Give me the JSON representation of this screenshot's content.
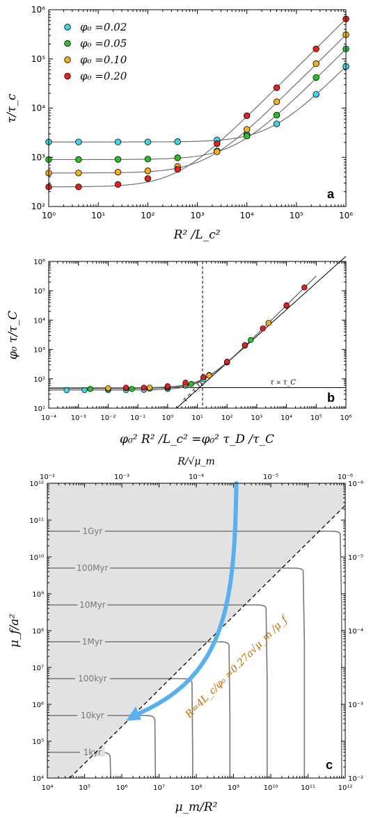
{
  "colors": {
    "series": [
      "#3fd6e3",
      "#2cbf2c",
      "#f0b020",
      "#e52020"
    ],
    "fit_line": "#666666",
    "shade": "#e2e2e2",
    "arrow": "#5ab0ee",
    "annotation_orange": "#c46a00"
  },
  "chart_data": [
    {
      "id": "a",
      "type": "scatter",
      "panel_label": "a",
      "xlabel": "R² /L_c²",
      "ylabel": "τ/τ_c",
      "xscale": "log",
      "yscale": "log",
      "xlim": [
        1,
        1000000
      ],
      "ylim": [
        100,
        1000000
      ],
      "xticks": [
        "10⁰",
        "10¹",
        "10²",
        "10³",
        "10⁴",
        "10⁵",
        "10⁶"
      ],
      "yticks": [
        "10²",
        "10³",
        "10⁴",
        "10⁵",
        "10⁶"
      ],
      "legend": {
        "placement": "top-left",
        "entries": [
          "φ₀ =0.02",
          "φ₀ =0.05",
          "φ₀ =0.10",
          "φ₀ =0.20"
        ]
      },
      "series": [
        {
          "name": "φ₀ =0.02",
          "x": [
            1,
            4,
            25,
            100,
            400,
            2500,
            10000,
            40000,
            250000,
            1000000
          ],
          "y": [
            2050,
            2050,
            2050,
            2050,
            2080,
            2250,
            2900,
            4800,
            19000,
            70000
          ]
        },
        {
          "name": "φ₀ =0.05",
          "x": [
            1,
            4,
            25,
            100,
            400,
            2500,
            10000,
            40000,
            250000,
            1000000
          ],
          "y": [
            900,
            900,
            910,
            920,
            980,
            1350,
            2700,
            7200,
            42000,
            160000
          ]
        },
        {
          "name": "φ₀ =0.10",
          "x": [
            1,
            4,
            25,
            100,
            400,
            2500,
            10000,
            40000,
            250000,
            1000000
          ],
          "y": [
            480,
            480,
            500,
            530,
            650,
            1300,
            3700,
            13500,
            80000,
            310000
          ]
        },
        {
          "name": "φ₀ =0.20",
          "x": [
            1,
            4,
            25,
            100,
            400,
            2500,
            10000,
            40000,
            250000,
            1000000
          ],
          "y": [
            250,
            250,
            280,
            370,
            570,
            1900,
            7000,
            26000,
            160000,
            650000
          ]
        }
      ]
    },
    {
      "id": "b",
      "type": "scatter",
      "panel_label": "b",
      "xlabel": "φ₀² R² /L_c² =φ₀² τ_D /τ_C",
      "ylabel": "φ₀ τ/τ_C",
      "xscale": "log",
      "yscale": "log",
      "xlim": [
        0.0001,
        1000000
      ],
      "ylim": [
        10,
        1000000
      ],
      "xticks": [
        "10⁻⁴",
        "10⁻³",
        "10⁻²",
        "10⁻¹",
        "10⁰",
        "10¹",
        "10²",
        "10³",
        "10⁴",
        "10⁵",
        "10⁶"
      ],
      "yticks": [
        "10¹",
        "10²",
        "10³",
        "10⁴",
        "10⁵",
        "10⁶"
      ],
      "vline_x": 15,
      "hline_y": 50,
      "annotations": [
        "τ ∝ τ_C",
        "τ ∝ τ_D"
      ],
      "series": [
        {
          "name": "φ₀ =0.02",
          "x": [
            0.0004,
            0.0016,
            0.01,
            0.04,
            0.16,
            1,
            4,
            16,
            100,
            400
          ],
          "y": [
            41,
            41,
            41,
            41,
            42,
            45,
            58,
            96,
            380,
            1400
          ]
        },
        {
          "name": "φ₀ =0.05",
          "x": [
            0.0025,
            0.01,
            0.0625,
            0.25,
            1,
            6.25,
            25,
            100,
            625,
            2500
          ],
          "y": [
            45,
            45,
            45,
            46,
            49,
            67,
            135,
            360,
            2100,
            8000
          ]
        },
        {
          "name": "φ₀ =0.10",
          "x": [
            0.01,
            0.04,
            0.25,
            1,
            4,
            25,
            100,
            400,
            2500,
            10000
          ],
          "y": [
            48,
            48,
            50,
            53,
            65,
            130,
            370,
            1350,
            8000,
            31000
          ]
        },
        {
          "name": "φ₀ =0.20",
          "x": [
            0.04,
            0.16,
            1,
            4,
            16,
            100,
            400,
            1600,
            10000,
            40000
          ],
          "y": [
            50,
            50,
            56,
            74,
            114,
            380,
            1400,
            5200,
            32000,
            130000
          ]
        }
      ]
    },
    {
      "id": "c",
      "type": "line",
      "panel_label": "c",
      "xlabel": "μ_m/R²",
      "ylabel": "μ_f/a²",
      "top_xlabel": "R/√μ_m",
      "xscale": "log",
      "yscale": "log",
      "xlim": [
        10000,
        1000000000000
      ],
      "ylim": [
        10000,
        1000000000000
      ],
      "xticks": [
        "10⁴",
        "10⁵",
        "10⁶",
        "10⁷",
        "10⁸",
        "10⁹",
        "10¹⁰",
        "10¹¹",
        "10¹²"
      ],
      "yticks": [
        "10⁴",
        "10⁵",
        "10⁶",
        "10⁷",
        "10⁸",
        "10⁹",
        "10¹⁰",
        "10¹¹",
        "10¹²"
      ],
      "top_xticks": [
        "10⁻²",
        "10⁻³",
        "10⁻⁴",
        "10⁻⁵",
        "10⁻⁶"
      ],
      "right_yticks": [
        "10⁻²",
        "10⁻³",
        "10⁻⁴",
        "10⁻⁵",
        "10⁻⁶"
      ],
      "diagonal_label": "R=4L_c/φ₀ ≃0.27a√μ_m /μ_f",
      "contours": [
        {
          "label": "1Gyr",
          "mu_f_level": 50000000000,
          "mu_m_level": 800000000000
        },
        {
          "label": "100Myr",
          "mu_f_level": 5000000000,
          "mu_m_level": 80000000000
        },
        {
          "label": "10Myr",
          "mu_f_level": 500000000,
          "mu_m_level": 8000000000
        },
        {
          "label": "1Myr",
          "mu_f_level": 50000000,
          "mu_m_level": 800000000
        },
        {
          "label": "100kyr",
          "mu_f_level": 5000000,
          "mu_m_level": 80000000
        },
        {
          "label": "10kyr",
          "mu_f_level": 500000,
          "mu_m_level": 8000000
        },
        {
          "label": "1kyr",
          "mu_f_level": 50000,
          "mu_m_level": 500000
        }
      ]
    }
  ]
}
